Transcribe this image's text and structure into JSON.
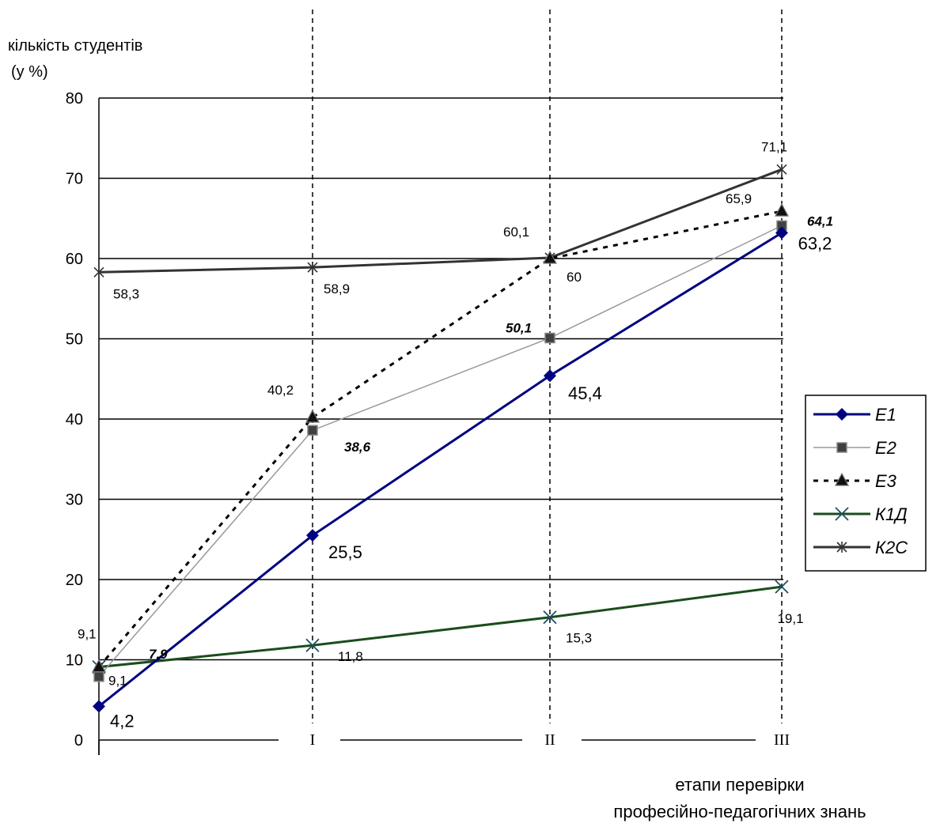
{
  "chart_data": {
    "type": "line",
    "ylabel_line1": "кількість студентів",
    "ylabel_line2": "(у %)",
    "xlabel_line1": "етапи перевірки",
    "xlabel_line2": "професійно-педагогічних знань",
    "categories": [
      "",
      "I",
      "II",
      "III"
    ],
    "ylim": [
      0,
      80
    ],
    "yticks": [
      "0",
      "10",
      "20",
      "30",
      "40",
      "50",
      "60",
      "70",
      "80"
    ],
    "grid": true,
    "legend_position": "right",
    "series": [
      {
        "name": "Е1",
        "color": "#000080",
        "marker": "diamond",
        "dash": "solid",
        "values": [
          4.2,
          25.5,
          45.4,
          63.2
        ],
        "labels": [
          "4,2",
          "25,5",
          "45,4",
          "63,2"
        ]
      },
      {
        "name": "Е2",
        "color": "#999999",
        "marker": "square",
        "dash": "solid",
        "values": [
          7.9,
          38.6,
          50.1,
          64.1
        ],
        "labels": [
          "7,9",
          "38,6",
          "50,1",
          "64,1"
        ]
      },
      {
        "name": "Е3",
        "color": "#000000",
        "marker": "triangle",
        "dash": "dashed",
        "values": [
          9.1,
          40.2,
          60,
          65.9
        ],
        "labels": [
          "9,1",
          "40,2",
          "60",
          "65,9"
        ]
      },
      {
        "name": "К1Д",
        "color": "#1a4d1a",
        "marker": "x",
        "dash": "solid",
        "values": [
          9.1,
          11.8,
          15.3,
          19.1
        ],
        "labels": [
          "9,1",
          "11,8",
          "15,3",
          "19,1"
        ]
      },
      {
        "name": "К2С",
        "color": "#333333",
        "marker": "star",
        "dash": "solid",
        "values": [
          58.3,
          58.9,
          60.1,
          71.1
        ],
        "labels": [
          "58,3",
          "58,9",
          "60,1",
          "71,1"
        ]
      }
    ]
  }
}
